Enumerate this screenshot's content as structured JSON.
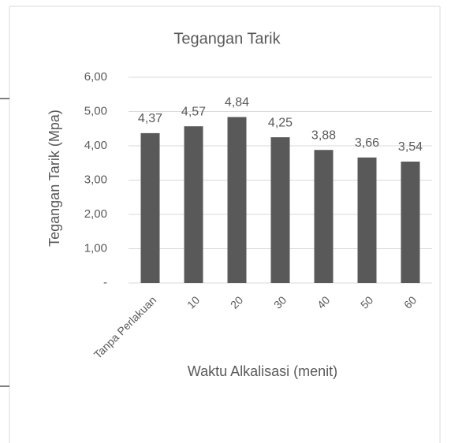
{
  "chart_data": {
    "type": "bar",
    "title": "Tegangan Tarik",
    "y_label": "Tegangan Tarik (Mpa)",
    "x_label": "Waktu Alkalisasi (menit)",
    "categories": [
      "Tanpa Perlakuan",
      "10",
      "20",
      "30",
      "40",
      "50",
      "60"
    ],
    "values": [
      4.37,
      4.57,
      4.84,
      4.25,
      3.88,
      3.66,
      3.54
    ],
    "value_labels": [
      "4,37",
      "4,57",
      "4,84",
      "4,25",
      "3,88",
      "3,66",
      "3,54"
    ],
    "color": "#595959",
    "ylim": [
      0,
      6
    ],
    "yticks": [
      {
        "value": 0,
        "label": "-"
      },
      {
        "value": 1,
        "label": "1,00"
      },
      {
        "value": 2,
        "label": "2,00"
      },
      {
        "value": 3,
        "label": "3,00"
      },
      {
        "value": 4,
        "label": "4,00"
      },
      {
        "value": 5,
        "label": "5,00"
      },
      {
        "value": 6,
        "label": "6,00"
      }
    ],
    "grid": true
  }
}
